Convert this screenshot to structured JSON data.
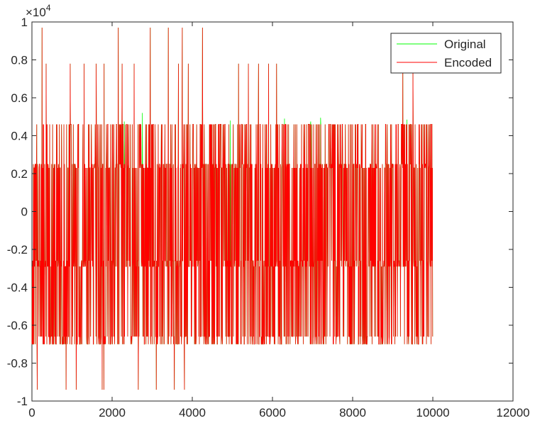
{
  "chart_data": {
    "type": "line",
    "title": "",
    "xlabel": "",
    "ylabel": "",
    "y_exponent_label": "×10",
    "y_exponent_power": "4",
    "xlim": [
      0,
      12000
    ],
    "ylim": [
      -10000,
      10000
    ],
    "x_ticks": [
      0,
      2000,
      4000,
      6000,
      8000,
      10000,
      12000
    ],
    "x_tick_labels": [
      "0",
      "2000",
      "4000",
      "6000",
      "8000",
      "10000",
      "12000"
    ],
    "y_ticks": [
      -10000,
      -8000,
      -6000,
      -4000,
      -2000,
      0,
      2000,
      4000,
      6000,
      8000,
      10000
    ],
    "y_tick_labels": [
      "-1",
      "-0.8",
      "-0.6",
      "-0.4",
      "-0.2",
      "0",
      "0.2",
      "0.4",
      "0.6",
      "0.8",
      "1"
    ],
    "grid": false,
    "legend_position": "top-right",
    "n_samples": 10000,
    "sample_levels": [
      4600,
      2500,
      -2900,
      -6600,
      -7000,
      2300,
      -2600
    ],
    "series": [
      {
        "name": "Original",
        "color": "#00ff00",
        "extra_peaks": [
          {
            "x": 2300,
            "y": 4750
          },
          {
            "x": 2750,
            "y": 5200
          },
          {
            "x": 4950,
            "y": 4800
          },
          {
            "x": 6300,
            "y": 4900
          },
          {
            "x": 6950,
            "y": 4750
          },
          {
            "x": 7200,
            "y": 4950
          },
          {
            "x": 9350,
            "y": 4850
          }
        ]
      },
      {
        "name": "Encoded",
        "color": "#ff0000",
        "spikes": [
          {
            "x": 250,
            "y": 9700
          },
          {
            "x": 850,
            "y": 9700
          },
          {
            "x": 2150,
            "y": 9700
          },
          {
            "x": 2950,
            "y": 9700
          },
          {
            "x": 3400,
            "y": 9700
          },
          {
            "x": 3750,
            "y": 9700
          },
          {
            "x": 4250,
            "y": 9700
          },
          {
            "x": 350,
            "y": 7800
          },
          {
            "x": 950,
            "y": 7800
          },
          {
            "x": 1300,
            "y": 7800
          },
          {
            "x": 1600,
            "y": 7800
          },
          {
            "x": 1800,
            "y": 7800
          },
          {
            "x": 2250,
            "y": 7800
          },
          {
            "x": 2550,
            "y": 7800
          },
          {
            "x": 3100,
            "y": 7800
          },
          {
            "x": 3650,
            "y": 7800
          },
          {
            "x": 3900,
            "y": 7800
          },
          {
            "x": 5150,
            "y": 7800
          },
          {
            "x": 5400,
            "y": 7800
          },
          {
            "x": 5650,
            "y": 7800
          },
          {
            "x": 5900,
            "y": 7800
          },
          {
            "x": 6100,
            "y": 7800
          },
          {
            "x": 9250,
            "y": 7800
          },
          {
            "x": 9500,
            "y": 7800
          },
          {
            "x": 130,
            "y": -9400
          },
          {
            "x": 850,
            "y": -9400
          },
          {
            "x": 1100,
            "y": -9400
          },
          {
            "x": 1750,
            "y": -9400
          },
          {
            "x": 1790,
            "y": -9400
          },
          {
            "x": 2650,
            "y": -9400
          },
          {
            "x": 3100,
            "y": -9400
          },
          {
            "x": 3550,
            "y": -9400
          },
          {
            "x": 3800,
            "y": -9400
          }
        ]
      }
    ]
  }
}
